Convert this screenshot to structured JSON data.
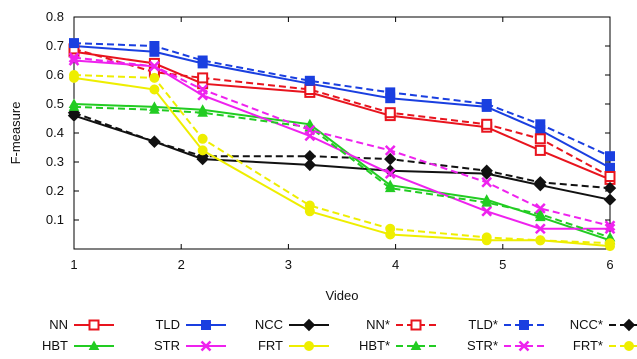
{
  "chart_data": {
    "type": "line",
    "xlabel": "Video",
    "ylabel": "F-measure",
    "xlim": [
      1,
      6
    ],
    "ylim": [
      0,
      0.8
    ],
    "x_ticks": [
      "1",
      "2",
      "3",
      "4",
      "5",
      "6"
    ],
    "y_ticks": [
      "0.1",
      "0.2",
      "0.3",
      "0.4",
      "0.5",
      "0.6",
      "0.7",
      "0.8"
    ],
    "grid": false,
    "legend_position": "bottom",
    "series": [
      {
        "name": "NN",
        "color": "#e8141e",
        "dash": false,
        "marker": "square-open",
        "x": [
          1,
          1.75,
          2.2,
          3.2,
          3.95,
          4.85,
          5.35,
          6.0
        ],
        "y": [
          0.68,
          0.64,
          0.57,
          0.54,
          0.46,
          0.42,
          0.34,
          0.24
        ]
      },
      {
        "name": "TLD",
        "color": "#1a3fe0",
        "dash": false,
        "marker": "square-filled",
        "x": [
          1,
          1.75,
          2.2,
          3.2,
          3.95,
          4.85,
          5.35,
          6.0
        ],
        "y": [
          0.7,
          0.68,
          0.64,
          0.57,
          0.52,
          0.49,
          0.41,
          0.28
        ]
      },
      {
        "name": "NCC",
        "color": "#111111",
        "dash": false,
        "marker": "diamond-filled",
        "x": [
          1,
          1.75,
          2.2,
          3.2,
          3.95,
          4.85,
          5.35,
          6.0
        ],
        "y": [
          0.46,
          0.37,
          0.31,
          0.29,
          0.27,
          0.26,
          0.22,
          0.17
        ]
      },
      {
        "name": "NN*",
        "color": "#e8141e",
        "dash": true,
        "marker": "square-open",
        "x": [
          1,
          1.75,
          2.2,
          3.2,
          3.95,
          4.85,
          5.35,
          6.0
        ],
        "y": [
          0.69,
          0.61,
          0.59,
          0.55,
          0.47,
          0.43,
          0.38,
          0.25
        ]
      },
      {
        "name": "TLD*",
        "color": "#1a3fe0",
        "dash": true,
        "marker": "square-filled",
        "x": [
          1,
          1.75,
          2.2,
          3.2,
          3.95,
          4.85,
          5.35,
          6.0
        ],
        "y": [
          0.71,
          0.7,
          0.65,
          0.58,
          0.54,
          0.5,
          0.43,
          0.32
        ]
      },
      {
        "name": "NCC*",
        "color": "#111111",
        "dash": true,
        "marker": "diamond-filled",
        "x": [
          1,
          1.75,
          2.2,
          3.2,
          3.95,
          4.85,
          5.35,
          6.0
        ],
        "y": [
          0.47,
          0.37,
          0.32,
          0.32,
          0.31,
          0.27,
          0.23,
          0.21
        ]
      },
      {
        "name": "HBT",
        "color": "#22cc22",
        "dash": false,
        "marker": "triangle-filled",
        "x": [
          1,
          1.75,
          2.2,
          3.2,
          3.95,
          4.85,
          5.35,
          6.0
        ],
        "y": [
          0.5,
          0.49,
          0.48,
          0.43,
          0.22,
          0.17,
          0.11,
          0.03
        ]
      },
      {
        "name": "STR",
        "color": "#ee22ee",
        "dash": false,
        "marker": "x",
        "x": [
          1,
          1.75,
          2.2,
          3.2,
          3.95,
          4.85,
          5.35,
          6.0
        ],
        "y": [
          0.65,
          0.63,
          0.53,
          0.39,
          0.26,
          0.13,
          0.07,
          0.07
        ]
      },
      {
        "name": "FRT",
        "color": "#eeee00",
        "dash": false,
        "marker": "circle-filled",
        "x": [
          1,
          1.75,
          2.2,
          3.2,
          3.95,
          4.85,
          5.35,
          6.0
        ],
        "y": [
          0.59,
          0.55,
          0.34,
          0.13,
          0.05,
          0.03,
          0.03,
          0.01
        ]
      },
      {
        "name": "HBT*",
        "color": "#22cc22",
        "dash": true,
        "marker": "triangle-filled",
        "x": [
          1,
          1.75,
          2.2,
          3.2,
          3.95,
          4.85,
          5.35,
          6.0
        ],
        "y": [
          0.49,
          0.48,
          0.47,
          0.42,
          0.21,
          0.16,
          0.12,
          0.04
        ]
      },
      {
        "name": "STR*",
        "color": "#ee22ee",
        "dash": true,
        "marker": "x",
        "x": [
          1,
          1.75,
          2.2,
          3.2,
          3.95,
          4.85,
          5.35,
          6.0
        ],
        "y": [
          0.66,
          0.63,
          0.55,
          0.41,
          0.34,
          0.23,
          0.14,
          0.08
        ]
      },
      {
        "name": "FRT*",
        "color": "#eeee00",
        "dash": true,
        "marker": "circle-filled",
        "x": [
          1,
          1.75,
          2.2,
          3.2,
          3.95,
          4.85,
          5.35,
          6.0
        ],
        "y": [
          0.6,
          0.59,
          0.38,
          0.15,
          0.07,
          0.04,
          0.03,
          0.02
        ]
      }
    ]
  }
}
